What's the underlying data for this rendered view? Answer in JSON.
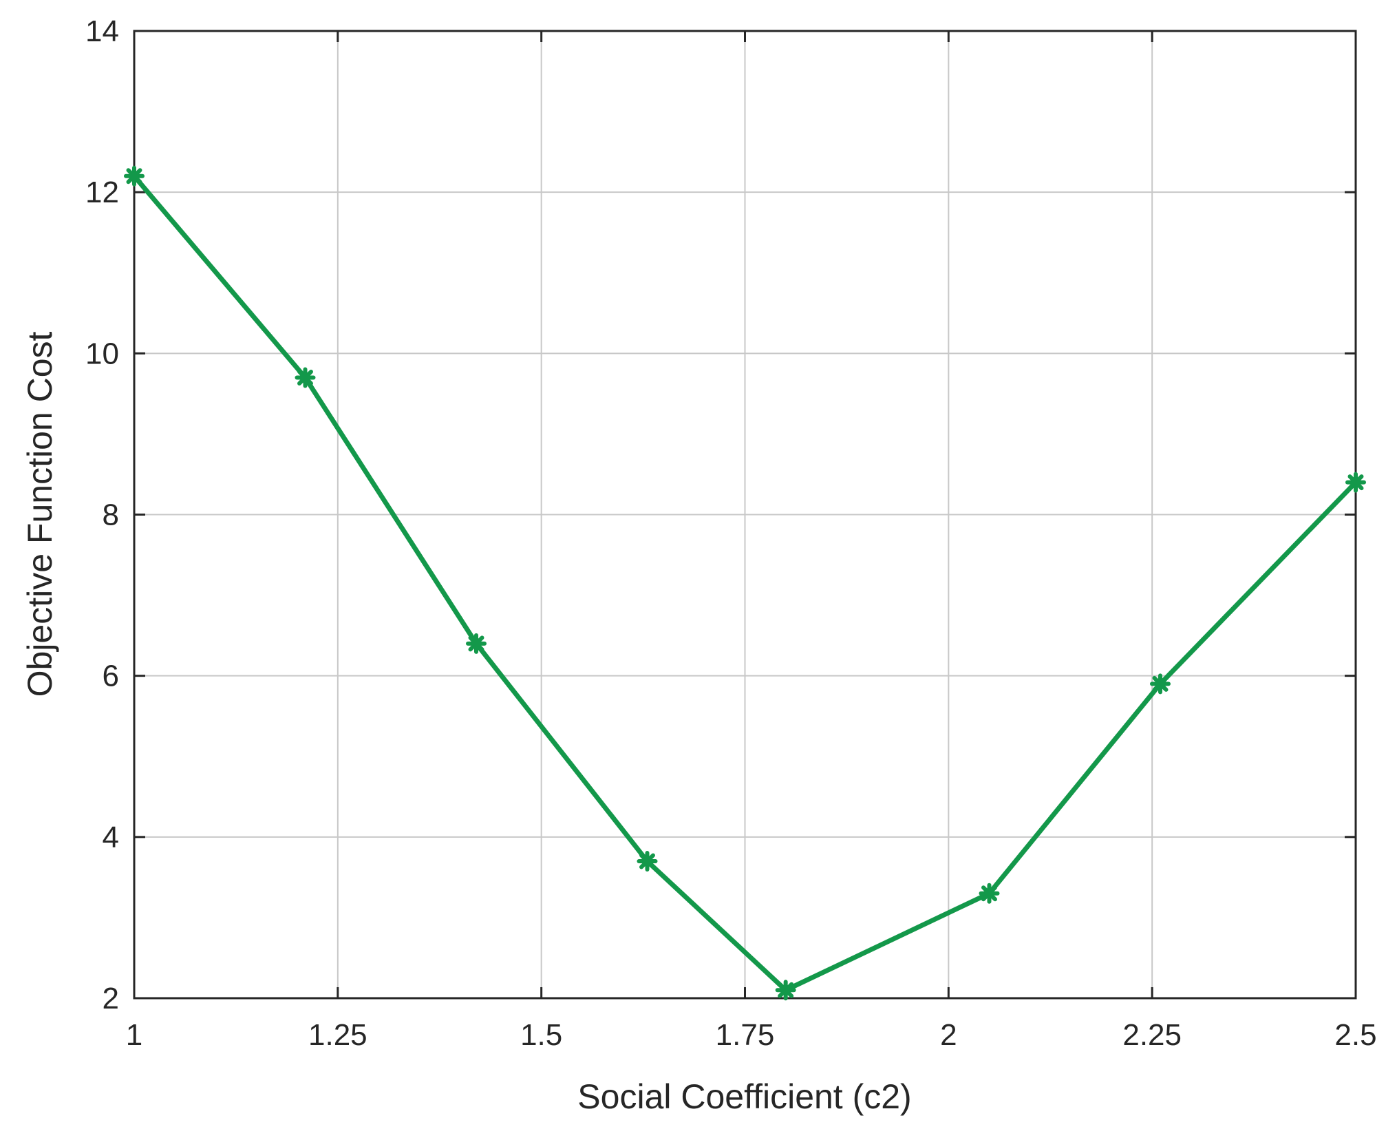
{
  "chart_data": {
    "type": "line",
    "title": "",
    "xlabel": "Social Coefficient (c2)",
    "ylabel": "Objective Function Cost",
    "xlim": [
      1,
      2.5
    ],
    "ylim": [
      2,
      14
    ],
    "xticks": [
      1,
      1.25,
      1.5,
      1.75,
      2,
      2.25,
      2.5
    ],
    "xtick_labels": [
      "1",
      "1.25",
      "1.5",
      "1.75",
      "2",
      "2.25",
      "2.5"
    ],
    "yticks": [
      2,
      4,
      6,
      8,
      10,
      12,
      14
    ],
    "ytick_labels": [
      "2",
      "4",
      "6",
      "8",
      "10",
      "12",
      "14"
    ],
    "grid": true,
    "series": [
      {
        "color": "#13984a",
        "marker": "asterisk",
        "x": [
          1.0,
          1.21,
          1.42,
          1.63,
          1.8,
          2.05,
          2.26,
          2.5
        ],
        "values": [
          12.2,
          9.7,
          6.4,
          3.7,
          2.1,
          3.3,
          5.9,
          8.4
        ]
      }
    ]
  }
}
